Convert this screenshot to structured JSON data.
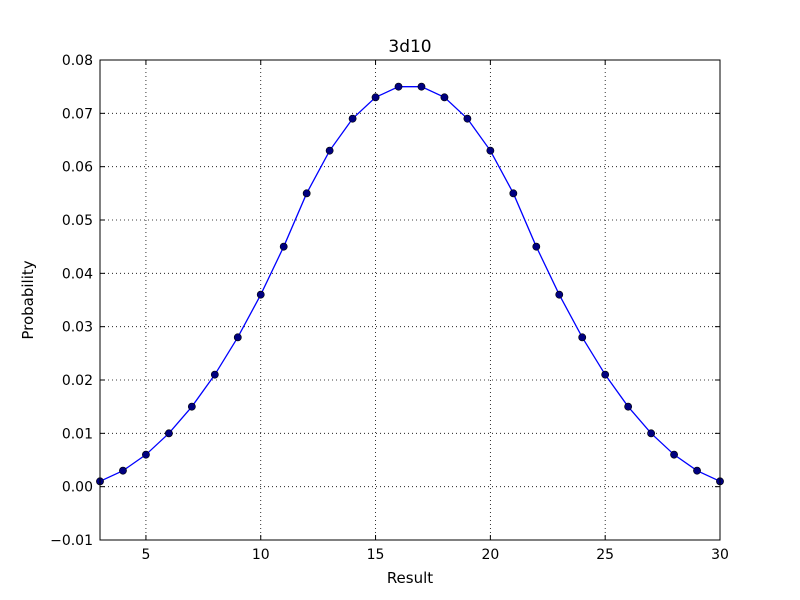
{
  "chart_data": {
    "type": "line",
    "title": "3d10",
    "xlabel": "Result",
    "ylabel": "Probability",
    "xlim": [
      3,
      30
    ],
    "ylim": [
      -0.01,
      0.08
    ],
    "x_ticks": [
      5,
      10,
      15,
      20,
      25,
      30
    ],
    "y_ticks": [
      -0.01,
      0.0,
      0.01,
      0.02,
      0.03,
      0.04,
      0.05,
      0.06,
      0.07,
      0.08
    ],
    "x_tick_labels": [
      "5",
      "10",
      "15",
      "20",
      "25",
      "30"
    ],
    "y_tick_labels": [
      "−0.01",
      "0.00",
      "0.01",
      "0.02",
      "0.03",
      "0.04",
      "0.05",
      "0.06",
      "0.07",
      "0.08"
    ],
    "grid": true,
    "series": [
      {
        "color": "#0000ff",
        "marker_color": "#000080",
        "x": [
          3,
          4,
          5,
          6,
          7,
          8,
          9,
          10,
          11,
          12,
          13,
          14,
          15,
          16,
          17,
          18,
          19,
          20,
          21,
          22,
          23,
          24,
          25,
          26,
          27,
          28,
          29,
          30
        ],
        "y": [
          0.001,
          0.003,
          0.006,
          0.01,
          0.015,
          0.021,
          0.028,
          0.036,
          0.045,
          0.055,
          0.063,
          0.069,
          0.073,
          0.075,
          0.075,
          0.073,
          0.069,
          0.063,
          0.055,
          0.045,
          0.036,
          0.028,
          0.021,
          0.015,
          0.01,
          0.006,
          0.003,
          0.001
        ]
      }
    ]
  }
}
